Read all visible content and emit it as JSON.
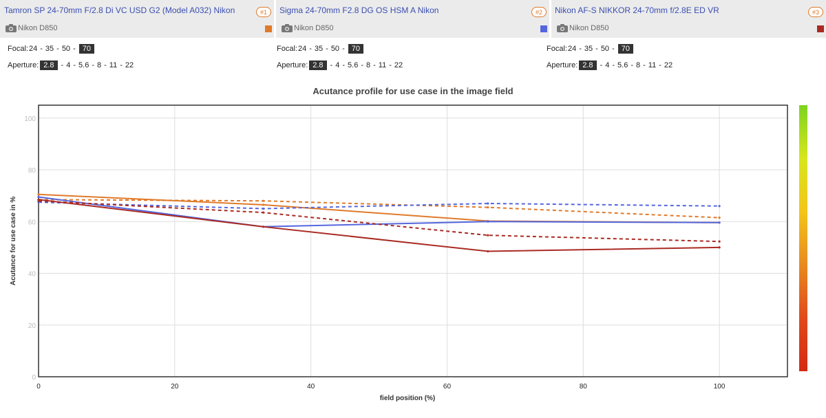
{
  "lenses": [
    {
      "name": "Tamron SP 24-70mm F/2.8 Di VC USD G2 (Model A032) Nikon",
      "badge": "#1",
      "camera": "Nikon D850",
      "color": "#e07a2a",
      "focal": {
        "label": "Focal:",
        "options": [
          "24",
          "35",
          "50",
          "70"
        ],
        "selected": "70"
      },
      "aperture": {
        "label": "Aperture:",
        "options": [
          "2.8",
          "4",
          "5.6",
          "8",
          "11",
          "22"
        ],
        "selected": "2.8"
      }
    },
    {
      "name": "Sigma 24-70mm F2.8 DG OS HSM A Nikon",
      "badge": "#2",
      "camera": "Nikon D850",
      "color": "#5566dd",
      "focal": {
        "label": "Focal:",
        "options": [
          "24",
          "35",
          "50",
          "70"
        ],
        "selected": "70"
      },
      "aperture": {
        "label": "Aperture:",
        "options": [
          "2.8",
          "4",
          "5.6",
          "8",
          "11",
          "22"
        ],
        "selected": "2.8"
      }
    },
    {
      "name": "Nikon AF-S NIKKOR 24-70mm f/2.8E ED VR",
      "badge": "#3",
      "camera": "Nikon D850",
      "color": "#aa2a22",
      "focal": {
        "label": "Focal:",
        "options": [
          "24",
          "35",
          "50",
          "70"
        ],
        "selected": "70"
      },
      "aperture": {
        "label": "Aperture:",
        "options": [
          "2.8",
          "4",
          "5.6",
          "8",
          "11",
          "22"
        ],
        "selected": "2.8"
      }
    }
  ],
  "chart_data": {
    "type": "line",
    "title": "Acutance profile for use case in the image field",
    "xlabel": "field position (%)",
    "ylabel": "Acutance for use case in %",
    "xlim": [
      0,
      110
    ],
    "ylim": [
      0,
      105
    ],
    "xticks": [
      0,
      20,
      40,
      60,
      80,
      100
    ],
    "yticks": [
      0,
      20,
      40,
      60,
      80,
      100
    ],
    "grid": true,
    "colorbar": {
      "gradient": [
        "#7ed321",
        "#d7e61c",
        "#f3c51a",
        "#e88a1f",
        "#e04a1a",
        "#d42a12"
      ]
    },
    "series": [
      {
        "lens": 1,
        "style": "solid",
        "color": "#e07a2a",
        "x": [
          0,
          33,
          66,
          100
        ],
        "y": [
          70.5,
          66.5,
          60.2,
          59.6
        ]
      },
      {
        "lens": 1,
        "style": "dashed",
        "color": "#e07a2a",
        "x": [
          0,
          33,
          66,
          100
        ],
        "y": [
          68.5,
          68.0,
          65.5,
          61.5
        ]
      },
      {
        "lens": 2,
        "style": "solid",
        "color": "#5566dd",
        "x": [
          0,
          33,
          66,
          100
        ],
        "y": [
          69.5,
          58.0,
          60.0,
          59.6
        ]
      },
      {
        "lens": 2,
        "style": "dashed",
        "color": "#5566dd",
        "x": [
          0,
          33,
          66,
          100
        ],
        "y": [
          67.5,
          65.0,
          67.0,
          66.0
        ]
      },
      {
        "lens": 3,
        "style": "solid",
        "color": "#aa2a22",
        "x": [
          0,
          33,
          66,
          100
        ],
        "y": [
          68.5,
          58.0,
          48.5,
          50.0
        ]
      },
      {
        "lens": 3,
        "style": "dashed",
        "color": "#aa2a22",
        "x": [
          0,
          33,
          66,
          100
        ],
        "y": [
          68.0,
          63.5,
          54.7,
          52.3
        ]
      }
    ]
  }
}
